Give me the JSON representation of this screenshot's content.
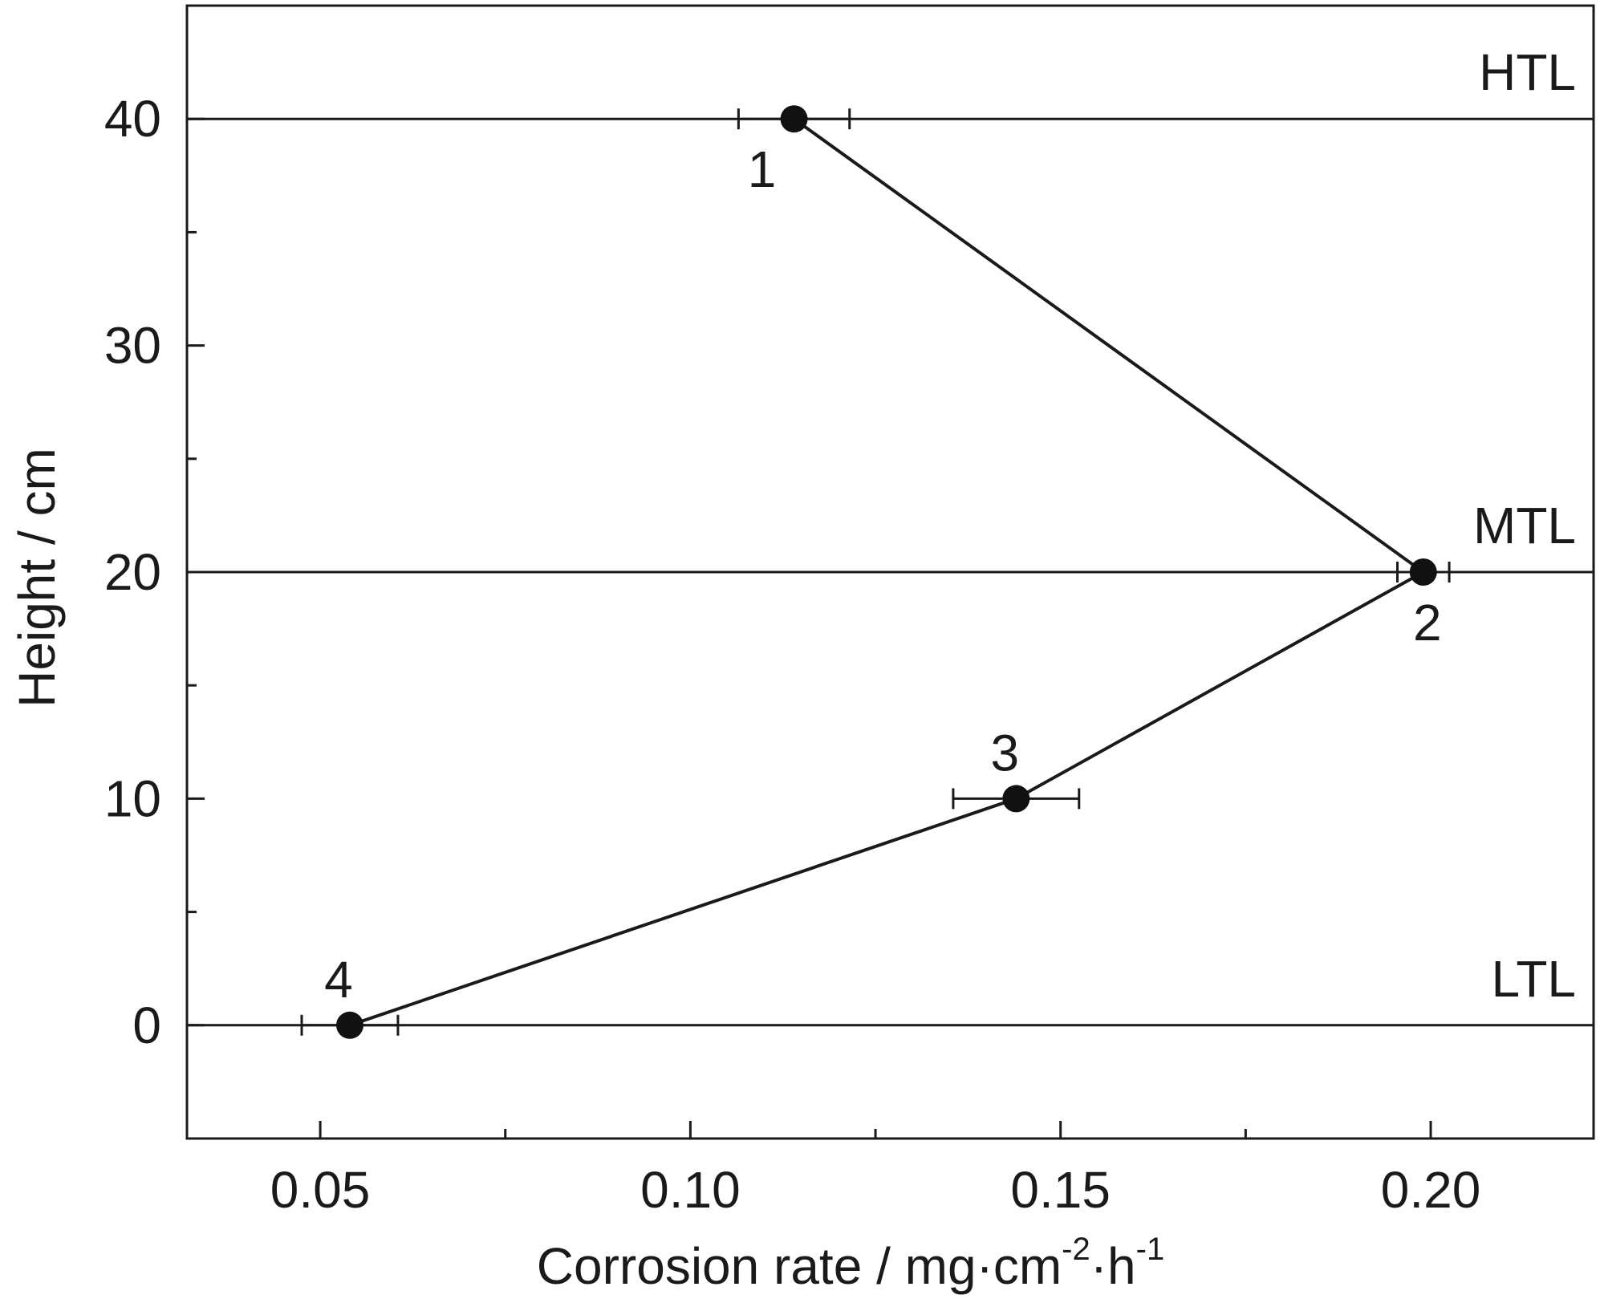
{
  "chart_data": {
    "type": "line",
    "title": "",
    "xlabel": {
      "main": "Corrosion rate / mg·cm",
      "sup1": "-2",
      "mid": "·h",
      "sup2": "-1"
    },
    "ylabel": "Height / cm",
    "xlim": [
      0.032,
      0.222
    ],
    "ylim": [
      -5,
      45
    ],
    "x_ticks": [
      0.05,
      0.1,
      0.15,
      0.2
    ],
    "x_tick_labels": [
      "0.05",
      "0.10",
      "0.15",
      "0.20"
    ],
    "x_minor_ticks": [
      0.075,
      0.125,
      0.175
    ],
    "y_ticks": [
      0,
      10,
      20,
      30,
      40
    ],
    "y_tick_labels": [
      "0",
      "10",
      "20",
      "30",
      "40"
    ],
    "y_minor_ticks": [
      5,
      15,
      25,
      35
    ],
    "grid": false,
    "reference_lines": [
      {
        "y": 40,
        "label": "HTL"
      },
      {
        "y": 20,
        "label": "MTL"
      },
      {
        "y": 0,
        "label": "LTL"
      }
    ],
    "points": [
      {
        "label": "1",
        "x": 0.114,
        "y": 40,
        "xerr": 0.0075,
        "label_pos": "below-left"
      },
      {
        "label": "2",
        "x": 0.199,
        "y": 20,
        "xerr": 0.0035,
        "label_pos": "below"
      },
      {
        "label": "3",
        "x": 0.144,
        "y": 10,
        "xerr": 0.0085,
        "label_pos": "above-left"
      },
      {
        "label": "4",
        "x": 0.054,
        "y": 0,
        "xerr": 0.0065,
        "label_pos": "above-left"
      }
    ],
    "colors": {
      "line": "#1a1a1a",
      "marker": "#111111",
      "axis": "#1a1a1a"
    }
  }
}
